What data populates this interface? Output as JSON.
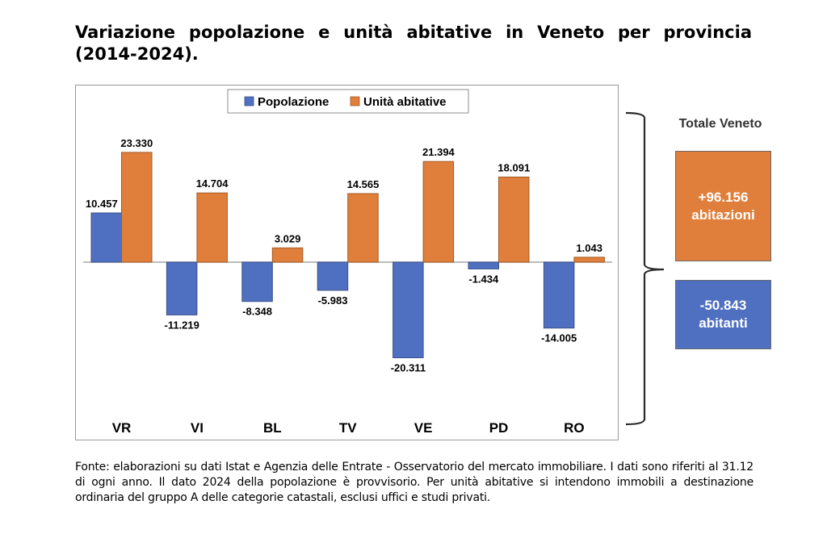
{
  "title_lines": [
    "Variazione popolazione e unità abitative in Veneto per provincia",
    "(2014-2024)."
  ],
  "chart_data": {
    "type": "bar",
    "title": "Variazione popolazione e unità abitative in Veneto per provincia (2014-2024).",
    "xlabel": "",
    "ylabel": "",
    "categories": [
      "VR",
      "VI",
      "BL",
      "TV",
      "VE",
      "PD",
      "RO"
    ],
    "series": [
      {
        "name": "Popolazione",
        "color": "#4f70c0",
        "values": [
          10457,
          -11219,
          -8348,
          -5983,
          -20311,
          -1434,
          -14005
        ],
        "labels": [
          "10.457",
          "-11.219",
          "-8.348",
          "-5.983",
          "-20.311",
          "-1.434",
          "-14.005"
        ]
      },
      {
        "name": "Unità abitative",
        "color": "#e07f3b",
        "values": [
          23330,
          14704,
          3029,
          14565,
          21394,
          18091,
          1043
        ],
        "labels": [
          "23.330",
          "14.704",
          "3.029",
          "14.565",
          "21.394",
          "18.091",
          "1.043"
        ]
      }
    ],
    "ylim": [
      -36000,
      38000
    ],
    "grid": false,
    "y_axis_visible": false,
    "legend": "top-center"
  },
  "totale": {
    "title": "Totale Veneto",
    "abitazioni": {
      "value": "+96.156",
      "unit": "abitazioni",
      "color": "#e07f3b"
    },
    "abitanti": {
      "value": "-50.843",
      "unit": "abitanti",
      "color": "#4f70c0"
    }
  },
  "footnote": "Fonte: elaborazioni su dati Istat e Agenzia delle Entrate - Osservatorio del mercato immobiliare. I dati sono riferiti al 31.12 di ogni anno. Il dato 2024 della popolazione è provvisorio. Per unità abitative si intendono immobili a destinazione ordinaria del gruppo A delle categorie catastali, esclusi uffici e studi privati."
}
